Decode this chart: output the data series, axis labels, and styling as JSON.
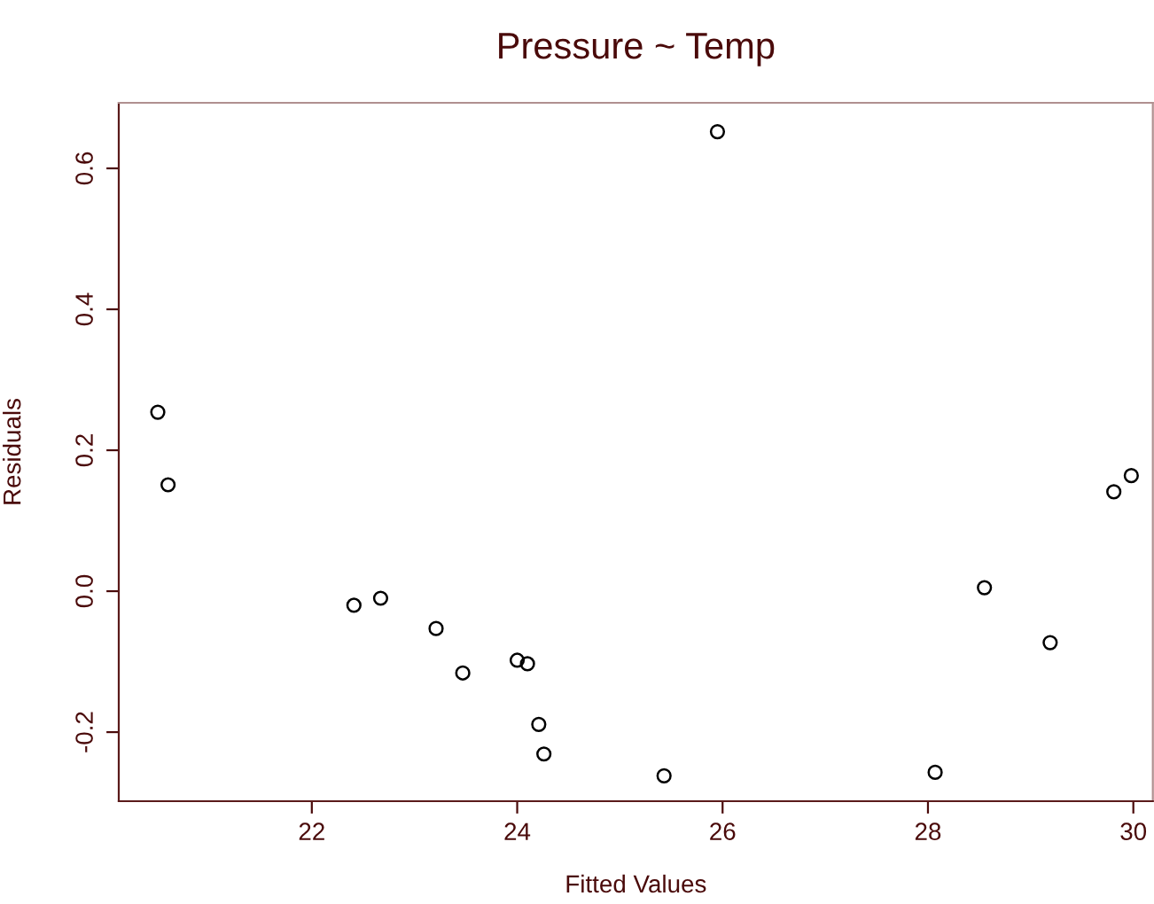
{
  "chart_data": {
    "type": "scatter",
    "title": "Pressure ~ Temp",
    "xlabel": "Fitted Values",
    "ylabel": "Residuals",
    "x": [
      20.5,
      20.6,
      22.41,
      22.67,
      23.21,
      23.47,
      24.0,
      24.1,
      24.21,
      24.26,
      25.43,
      25.95,
      28.07,
      28.55,
      29.19,
      29.81,
      29.98
    ],
    "series": [
      {
        "color": "#000000",
        "values": [
          0.254,
          0.151,
          -0.02,
          -0.01,
          -0.053,
          -0.116,
          -0.098,
          -0.103,
          -0.189,
          -0.231,
          -0.262,
          0.652,
          -0.257,
          0.005,
          -0.073,
          0.141,
          0.164
        ]
      }
    ],
    "xlim": [
      20.12,
      30.19
    ],
    "ylim": [
      -0.298,
      0.693
    ],
    "xticks": [
      22,
      24,
      26,
      28,
      30
    ],
    "yticks": [
      -0.2,
      {
        "value": 0,
        "label": "0.0"
      },
      0.2,
      0.4,
      0.6
    ],
    "marker": "circle",
    "grid": false,
    "legend": false
  }
}
